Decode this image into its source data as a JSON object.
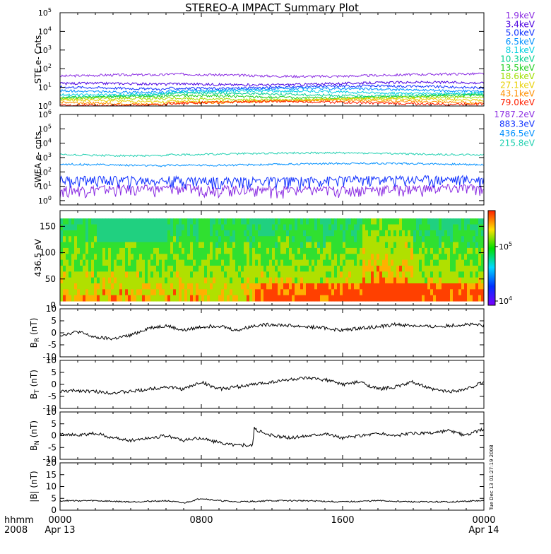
{
  "title": "STEREO-A IMPACT Summary Plot",
  "time_axis": {
    "row1_label": "hhmm",
    "row2_label": "2008",
    "ticks": [
      {
        "hour": 0,
        "time": "0000",
        "date": "Apr 13"
      },
      {
        "hour": 8,
        "time": "0800",
        "date": ""
      },
      {
        "hour": 16,
        "time": "1600",
        "date": ""
      },
      {
        "hour": 24,
        "time": "0000",
        "date": "Apr 14"
      }
    ],
    "range_hours": [
      0,
      24
    ]
  },
  "side_stamp": "Tue Dec 13 01:27:19 2008",
  "chart_data": [
    {
      "type": "line",
      "ylabel": "STE e- Cnts",
      "yscale": "log",
      "ylim": [
        1,
        100000
      ],
      "y_ticks": [
        "10^0",
        "10^1",
        "10^2",
        "10^3",
        "10^4",
        "10^5"
      ],
      "series": [
        {
          "name": "1.9keV",
          "color": "#8a2be2",
          "level": 40
        },
        {
          "name": "3.4keV",
          "color": "#4b00e0",
          "level": 14
        },
        {
          "name": "5.0keV",
          "color": "#1030ff",
          "level": 9
        },
        {
          "name": "6.5keV",
          "color": "#0090ff",
          "level": 6.5
        },
        {
          "name": "8.1keV",
          "color": "#00d0e0",
          "level": 4.8
        },
        {
          "name": "10.3keV",
          "color": "#00d090",
          "level": 3.6
        },
        {
          "name": "13.5keV",
          "color": "#20d020",
          "level": 2.8
        },
        {
          "name": "18.6keV",
          "color": "#a0e000",
          "level": 2.2
        },
        {
          "name": "27.1keV",
          "color": "#e8d000",
          "level": 1.8
        },
        {
          "name": "43.1keV",
          "color": "#ff9000",
          "level": 1.5
        },
        {
          "name": "79.0keV",
          "color": "#ff2000",
          "level": 1.3
        }
      ]
    },
    {
      "type": "line",
      "ylabel": "SWEA e- cnts",
      "yscale": "log",
      "ylim": [
        0.5,
        1000000
      ],
      "y_ticks": [
        "10^0",
        "10^1",
        "10^2",
        "10^3",
        "10^4",
        "10^5",
        "10^6"
      ],
      "series": [
        {
          "name": "1787.2eV",
          "color": "#8a2be2",
          "level": 4
        },
        {
          "name": "883.3eV",
          "color": "#1030ff",
          "level": 17
        },
        {
          "name": "436.5eV",
          "color": "#0090ff",
          "level": 300
        },
        {
          "name": "215.8eV",
          "color": "#20d0b0",
          "level": 1600
        }
      ]
    },
    {
      "type": "heatmap",
      "ylabel": "436.5 eV",
      "ylim": [
        0,
        180
      ],
      "y_ticks": [
        0,
        50,
        100,
        150
      ],
      "colorbar": {
        "min_label": "10^4",
        "mid_label": "10^5"
      }
    },
    {
      "type": "line",
      "ylabel": "B_R (nT)",
      "ylabel_main": "B",
      "ylabel_sub": "R",
      "ylabel_unit": "(nT)",
      "ylim": [
        -10,
        10
      ],
      "y_ticks": [
        -10,
        -5,
        0,
        5,
        10
      ],
      "points": [
        [
          0,
          -1
        ],
        [
          1,
          0.5
        ],
        [
          2,
          -2
        ],
        [
          3,
          -2.5
        ],
        [
          4,
          -1
        ],
        [
          5,
          2
        ],
        [
          6,
          3
        ],
        [
          7,
          1
        ],
        [
          8,
          2.5
        ],
        [
          9,
          3
        ],
        [
          10,
          1
        ],
        [
          11,
          3
        ],
        [
          12,
          3.5
        ],
        [
          13,
          3
        ],
        [
          14,
          2.5
        ],
        [
          15,
          2
        ],
        [
          16,
          1
        ],
        [
          17,
          2
        ],
        [
          18,
          2.5
        ],
        [
          19,
          3.5
        ],
        [
          20,
          3
        ],
        [
          21,
          2.5
        ],
        [
          22,
          3
        ],
        [
          23,
          3.5
        ],
        [
          24,
          3
        ]
      ]
    },
    {
      "type": "line",
      "ylabel": "B_T (nT)",
      "ylabel_main": "B",
      "ylabel_sub": "T",
      "ylabel_unit": "(nT)",
      "ylim": [
        -10,
        10
      ],
      "y_ticks": [
        -10,
        -5,
        0,
        5,
        10
      ],
      "points": [
        [
          0,
          -3
        ],
        [
          1,
          -2.5
        ],
        [
          2,
          -3
        ],
        [
          3,
          -3.5
        ],
        [
          4,
          -3
        ],
        [
          5,
          -2
        ],
        [
          6,
          -1
        ],
        [
          7,
          -2
        ],
        [
          8,
          1
        ],
        [
          9,
          -2
        ],
        [
          10,
          -1
        ],
        [
          11,
          0
        ],
        [
          12,
          1
        ],
        [
          13,
          2
        ],
        [
          14,
          2.5
        ],
        [
          15,
          2
        ],
        [
          16,
          0
        ],
        [
          17,
          1
        ],
        [
          18,
          -2
        ],
        [
          19,
          -1
        ],
        [
          20,
          1
        ],
        [
          21,
          -2
        ],
        [
          22,
          -3
        ],
        [
          23,
          -2
        ],
        [
          24,
          1
        ]
      ]
    },
    {
      "type": "line",
      "ylabel": "B_N (nT)",
      "ylabel_main": "B",
      "ylabel_sub": "N",
      "ylabel_unit": "(nT)",
      "ylim": [
        -10,
        10
      ],
      "y_ticks": [
        -10,
        -5,
        0,
        5,
        10
      ],
      "points": [
        [
          0,
          1
        ],
        [
          1,
          0
        ],
        [
          2,
          1
        ],
        [
          3,
          -1
        ],
        [
          4,
          -2
        ],
        [
          5,
          -1
        ],
        [
          6,
          0
        ],
        [
          7,
          -2
        ],
        [
          8,
          -1
        ],
        [
          9,
          -3
        ],
        [
          10,
          -4
        ],
        [
          10.9,
          -4
        ],
        [
          11,
          3
        ],
        [
          11.5,
          1
        ],
        [
          12,
          0
        ],
        [
          13,
          -1
        ],
        [
          14,
          0
        ],
        [
          15,
          1
        ],
        [
          16,
          -1
        ],
        [
          17,
          0
        ],
        [
          18,
          1
        ],
        [
          19,
          0
        ],
        [
          20,
          1
        ],
        [
          21,
          1
        ],
        [
          22,
          2
        ],
        [
          23,
          0
        ],
        [
          24,
          3
        ]
      ]
    },
    {
      "type": "line",
      "ylabel": "|B| (nT)",
      "ylim": [
        0,
        20
      ],
      "y_ticks": [
        0,
        5,
        10,
        15,
        20
      ],
      "points": [
        [
          0,
          4
        ],
        [
          2,
          4
        ],
        [
          4,
          3.5
        ],
        [
          6,
          4
        ],
        [
          7,
          3
        ],
        [
          8,
          5
        ],
        [
          9,
          4
        ],
        [
          10,
          3.5
        ],
        [
          12,
          4
        ],
        [
          14,
          4
        ],
        [
          16,
          3.5
        ],
        [
          18,
          4
        ],
        [
          20,
          3.5
        ],
        [
          22,
          3.5
        ],
        [
          24,
          4
        ]
      ]
    }
  ]
}
